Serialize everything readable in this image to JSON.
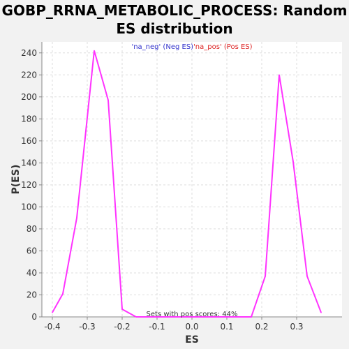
{
  "chart_data": {
    "type": "line",
    "title_line1": "GOBP_RRNA_METABOLIC_PROCESS: Random",
    "title_line2": "ES distribution",
    "xlabel": "ES",
    "ylabel": "P(ES)",
    "xlim": [
      -0.43,
      0.43
    ],
    "ylim": [
      0,
      250
    ],
    "xticks": [
      -0.4,
      -0.3,
      -0.2,
      -0.1,
      0.0,
      0.1,
      0.2,
      0.3
    ],
    "xtick_labels": [
      "-0.4",
      "-0.3",
      "-0.2",
      "-0.1",
      "0.0",
      "0.1",
      "0.2",
      "0.3"
    ],
    "yticks": [
      0,
      20,
      40,
      60,
      80,
      100,
      120,
      140,
      160,
      180,
      200,
      220,
      240
    ],
    "ytick_labels": [
      "0",
      "20",
      "40",
      "60",
      "80",
      "100",
      "120",
      "140",
      "160",
      "180",
      "200",
      "220",
      "240"
    ],
    "grid": true,
    "legend": [
      {
        "label": "'na_neg' (Neg ES)",
        "color": "#3333cc"
      },
      {
        "label": "'na_pos' (Pos ES)",
        "color": "#dd2222"
      }
    ],
    "annotation": "Sets with pos scores: 44%",
    "series": [
      {
        "color": "#ff33ff",
        "x": [
          -0.4,
          -0.37,
          -0.33,
          -0.28,
          -0.24,
          -0.2,
          -0.16,
          -0.12,
          0.17,
          0.21,
          0.25,
          0.29,
          0.33,
          0.37
        ],
        "y": [
          4,
          21,
          90,
          242,
          197,
          7,
          0,
          0,
          0,
          37,
          220,
          141,
          37,
          4
        ]
      }
    ]
  }
}
